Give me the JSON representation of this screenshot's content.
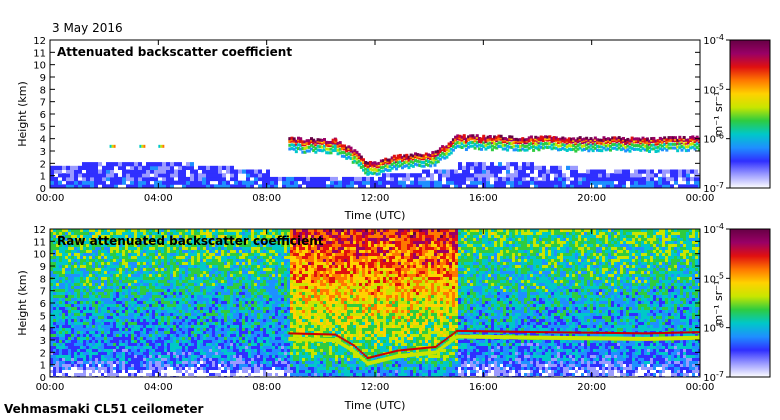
{
  "header": {
    "date": "3 May 2016"
  },
  "footer": {
    "site": "Vehmasmaki CL51 ceilometer"
  },
  "colorbar": {
    "unit": "m⁻¹ sr⁻¹",
    "ticks": [
      {
        "base": "10",
        "exp": "-4"
      },
      {
        "base": "10",
        "exp": "-5"
      },
      {
        "base": "10",
        "exp": "-6"
      },
      {
        "base": "10",
        "exp": "-7"
      }
    ],
    "colors": [
      "#ffffff",
      "#9b9bff",
      "#2f2fff",
      "#1e90ff",
      "#00c8c8",
      "#2ecc40",
      "#c8e600",
      "#ffd200",
      "#ff7800",
      "#e01010",
      "#990066",
      "#660044"
    ]
  },
  "chart_data": [
    {
      "type": "heatmap",
      "title": "Attenuated backscatter coefficient",
      "xlabel": "Time (UTC)",
      "ylabel": "Height (km)",
      "xticks": [
        "00:00",
        "04:00",
        "08:00",
        "12:00",
        "16:00",
        "20:00",
        "00:00"
      ],
      "yticks": [
        "0",
        "1",
        "2",
        "3",
        "4",
        "5",
        "6",
        "7",
        "8",
        "9",
        "10",
        "11",
        "12"
      ],
      "xlim_hours": [
        0,
        24
      ],
      "ylim": [
        0,
        12
      ],
      "zlim": [
        1e-07,
        0.0001
      ],
      "zscale": "log",
      "cloud_base_km": [
        {
          "t": 8.8,
          "h": 3.5
        },
        {
          "t": 10.5,
          "h": 3.4
        },
        {
          "t": 11.2,
          "h": 2.5
        },
        {
          "t": 11.7,
          "h": 1.5
        },
        {
          "t": 12.8,
          "h": 2.1
        },
        {
          "t": 14.2,
          "h": 2.4
        },
        {
          "t": 15.0,
          "h": 3.7
        },
        {
          "t": 18.0,
          "h": 3.6
        },
        {
          "t": 22.0,
          "h": 3.5
        },
        {
          "t": 24.0,
          "h": 3.6
        }
      ]
    },
    {
      "type": "heatmap",
      "title": "Raw attenuated backscatter coefficient",
      "xlabel": "Time (UTC)",
      "ylabel": "Height (km)",
      "xticks": [
        "00:00",
        "04:00",
        "08:00",
        "12:00",
        "16:00",
        "20:00",
        "00:00"
      ],
      "yticks": [
        "0",
        "1",
        "2",
        "3",
        "4",
        "5",
        "6",
        "7",
        "8",
        "9",
        "10",
        "11",
        "12"
      ],
      "xlim_hours": [
        0,
        24
      ],
      "ylim": [
        0,
        12
      ],
      "zlim": [
        1e-07,
        0.0001
      ],
      "zscale": "log"
    }
  ]
}
